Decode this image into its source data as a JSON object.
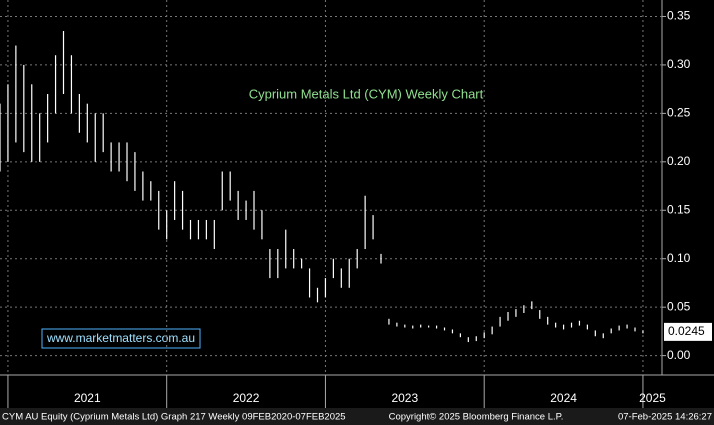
{
  "chart_data": {
    "type": "range-bar",
    "title": "Cyprium Metals Ltd (CYM) Weekly Chart",
    "watermark": "www.marketmatters.com.au",
    "footer": [
      "CYM AU Equity (Cyprium Metals Ltd) Graph 217  Weekly 09FEB2020-07FEB2025",
      "Copyright© 2025 Bloomberg Finance L.P.",
      "07-Feb-2025 14:26:27"
    ],
    "last_price": 0.0245,
    "color": "#ffffff",
    "grid": true,
    "xlim": [
      2020.95,
      2025.12
    ],
    "ylim": [
      -0.02,
      0.367
    ],
    "xticks": [
      {
        "value": 2021,
        "label": "2021"
      },
      {
        "value": 2022,
        "label": "2022"
      },
      {
        "value": 2023,
        "label": "2023"
      },
      {
        "value": 2024,
        "label": "2024"
      },
      {
        "value": 2025,
        "label": "2025"
      }
    ],
    "yticks": [
      {
        "value": 0,
        "label": "0.00"
      },
      0.05,
      {
        "value": 0.1,
        "label": "0.10"
      },
      0.15,
      {
        "value": 0.2,
        "label": "0.20"
      },
      0.25,
      {
        "value": 0.3,
        "label": "0.30"
      },
      0.35
    ],
    "x": [
      2020.95,
      2021,
      2021.05,
      2021.1,
      2021.15,
      2021.2,
      2021.25,
      2021.3,
      2021.35,
      2021.4,
      2021.45,
      2021.5,
      2021.55,
      2021.6,
      2021.65,
      2021.7,
      2021.75,
      2021.8,
      2021.85,
      2021.9,
      2021.95,
      2022,
      2022.05,
      2022.1,
      2022.15,
      2022.2,
      2022.25,
      2022.3,
      2022.35,
      2022.4,
      2022.45,
      2022.5,
      2022.55,
      2022.6,
      2022.65,
      2022.7,
      2022.75,
      2022.8,
      2022.85,
      2022.9,
      2022.95,
      2023,
      2023.05,
      2023.1,
      2023.15,
      2023.2,
      2023.25,
      2023.3,
      2023.35,
      2023.4,
      2023.45,
      2023.5,
      2023.55,
      2023.6,
      2023.65,
      2023.7,
      2023.75,
      2023.8,
      2023.85,
      2023.9,
      2023.95,
      2024,
      2024.05,
      2024.1,
      2024.15,
      2024.2,
      2024.25,
      2024.3,
      2024.35,
      2024.4,
      2024.45,
      2024.5,
      2024.55,
      2024.6,
      2024.65,
      2024.7,
      2024.75,
      2024.8,
      2024.85,
      2024.9,
      2024.95,
      2025
    ],
    "low": [
      0.19,
      0.2,
      0.22,
      0.21,
      0.2,
      0.2,
      0.22,
      0.25,
      0.27,
      0.25,
      0.23,
      0.22,
      0.2,
      0.21,
      0.19,
      0.19,
      0.18,
      0.17,
      0.16,
      0.16,
      0.13,
      0.12,
      0.14,
      0.13,
      0.12,
      0.12,
      0.12,
      0.11,
      0.15,
      0.16,
      0.14,
      0.14,
      0.13,
      0.12,
      0.08,
      0.08,
      0.09,
      0.09,
      0.09,
      0.06,
      0.055,
      0.06,
      0.08,
      0.07,
      0.07,
      0.09,
      0.11,
      0.12,
      0.095,
      0.032,
      0.03,
      0.029,
      0.028,
      0.029,
      0.029,
      0.028,
      0.026,
      0.023,
      0.019,
      0.014,
      0.015,
      0.018,
      0.022,
      0.03,
      0.036,
      0.04,
      0.044,
      0.048,
      0.038,
      0.032,
      0.029,
      0.027,
      0.029,
      0.031,
      0.027,
      0.02,
      0.018,
      0.023,
      0.026,
      0.028,
      0.025,
      0.023
    ],
    "high": [
      0.26,
      0.28,
      0.32,
      0.3,
      0.28,
      0.25,
      0.27,
      0.31,
      0.335,
      0.31,
      0.27,
      0.26,
      0.25,
      0.25,
      0.22,
      0.22,
      0.22,
      0.21,
      0.19,
      0.18,
      0.17,
      0.15,
      0.18,
      0.17,
      0.14,
      0.14,
      0.14,
      0.14,
      0.19,
      0.19,
      0.17,
      0.16,
      0.17,
      0.15,
      0.11,
      0.11,
      0.13,
      0.11,
      0.1,
      0.09,
      0.07,
      0.08,
      0.1,
      0.09,
      0.1,
      0.11,
      0.165,
      0.145,
      0.105,
      0.038,
      0.034,
      0.032,
      0.031,
      0.032,
      0.031,
      0.031,
      0.029,
      0.027,
      0.023,
      0.019,
      0.02,
      0.024,
      0.03,
      0.04,
      0.045,
      0.048,
      0.052,
      0.056,
      0.047,
      0.04,
      0.034,
      0.032,
      0.034,
      0.036,
      0.032,
      0.026,
      0.023,
      0.028,
      0.031,
      0.032,
      0.029,
      0.026
    ]
  }
}
